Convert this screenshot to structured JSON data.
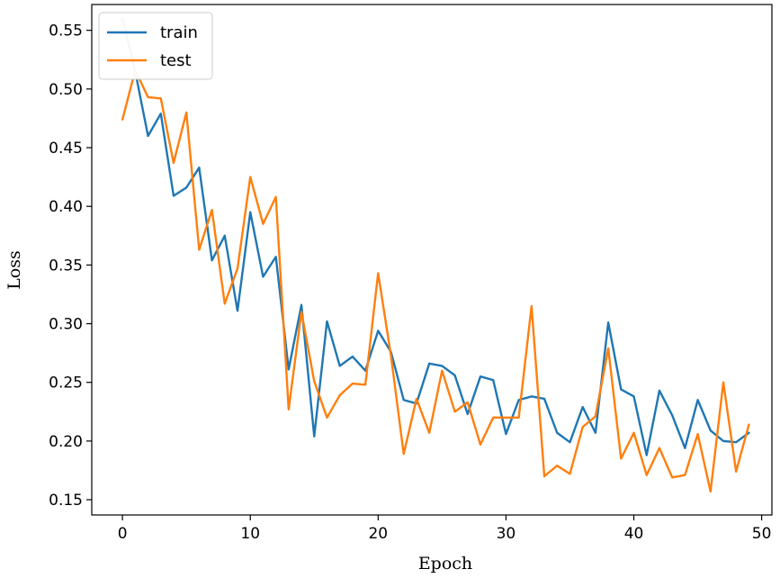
{
  "chart_data": {
    "type": "line",
    "title": "",
    "xlabel": "Epoch",
    "ylabel": "Loss",
    "xlim": [
      -2.4,
      50.8
    ],
    "ylim": [
      0.137,
      0.572
    ],
    "xticks": [
      0,
      10,
      20,
      30,
      40,
      50
    ],
    "yticks": [
      0.15,
      0.2,
      0.25,
      0.3,
      0.35,
      0.4,
      0.45,
      0.5,
      0.55
    ],
    "xtick_labels": [
      "0",
      "10",
      "20",
      "30",
      "40",
      "50"
    ],
    "ytick_labels": [
      "0.15",
      "0.20",
      "0.25",
      "0.30",
      "0.35",
      "0.40",
      "0.45",
      "0.50",
      "0.55"
    ],
    "grid": false,
    "legend_position": "upper-left",
    "x": [
      0,
      1,
      2,
      3,
      4,
      5,
      6,
      7,
      8,
      9,
      10,
      11,
      12,
      13,
      14,
      15,
      16,
      17,
      18,
      19,
      20,
      21,
      22,
      23,
      24,
      25,
      26,
      27,
      28,
      29,
      30,
      31,
      32,
      33,
      34,
      35,
      36,
      37,
      38,
      39,
      40,
      41,
      42,
      43,
      44,
      45,
      46,
      47,
      48,
      49
    ],
    "series": [
      {
        "name": "train",
        "color": "#1f77b4",
        "values": [
          0.56,
          0.515,
          0.46,
          0.479,
          0.409,
          0.416,
          0.433,
          0.354,
          0.375,
          0.311,
          0.395,
          0.34,
          0.357,
          0.261,
          0.316,
          0.204,
          0.302,
          0.264,
          0.272,
          0.26,
          0.294,
          0.276,
          0.235,
          0.232,
          0.266,
          0.264,
          0.256,
          0.223,
          0.255,
          0.252,
          0.206,
          0.235,
          0.238,
          0.236,
          0.207,
          0.199,
          0.229,
          0.207,
          0.301,
          0.244,
          0.238,
          0.188,
          0.243,
          0.222,
          0.194,
          0.235,
          0.209,
          0.2,
          0.199,
          0.207
        ]
      },
      {
        "name": "test",
        "color": "#ff7f0e",
        "values": [
          0.474,
          0.516,
          0.493,
          0.492,
          0.437,
          0.48,
          0.363,
          0.397,
          0.317,
          0.347,
          0.425,
          0.385,
          0.408,
          0.227,
          0.31,
          0.251,
          0.22,
          0.239,
          0.249,
          0.248,
          0.343,
          0.273,
          0.189,
          0.236,
          0.207,
          0.26,
          0.225,
          0.233,
          0.197,
          0.22,
          0.22,
          0.22,
          0.315,
          0.17,
          0.179,
          0.172,
          0.212,
          0.221,
          0.279,
          0.185,
          0.207,
          0.171,
          0.194,
          0.169,
          0.171,
          0.206,
          0.157,
          0.25,
          0.174,
          0.214
        ]
      }
    ]
  }
}
